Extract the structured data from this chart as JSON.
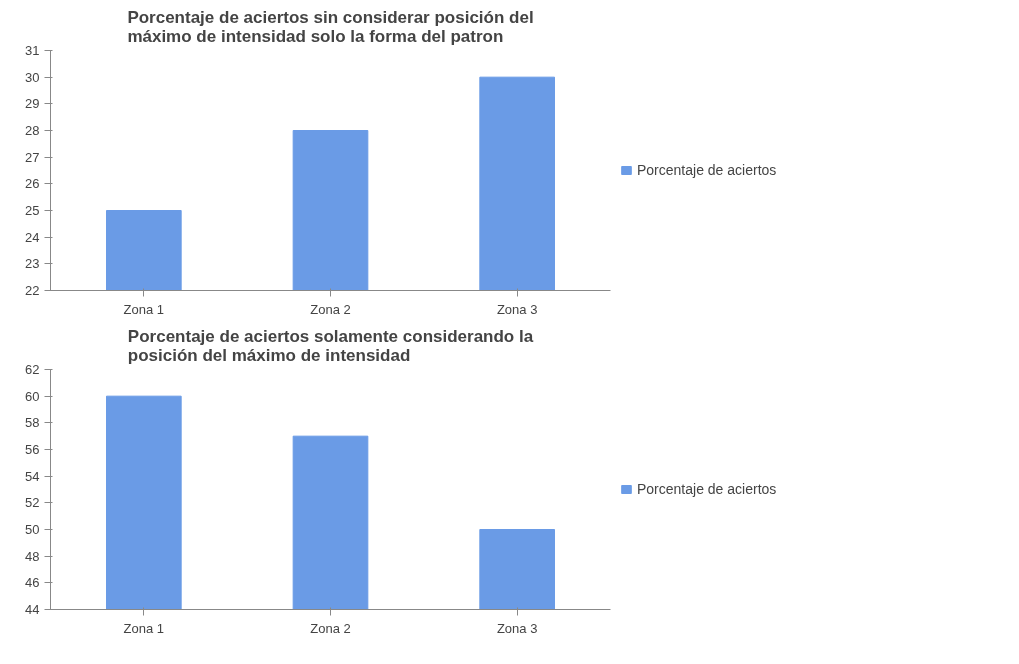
{
  "chart_data": [
    {
      "type": "bar",
      "title": "Porcentaje de aciertos sin considerar posición del\nmáximo de intensidad solo la forma del patron",
      "categories": [
        "Zona 1",
        "Zona 2",
        "Zona 3"
      ],
      "series": [
        {
          "name": "Porcentaje de aciertos",
          "color": "#6a9be6",
          "values": [
            25,
            28,
            30
          ]
        }
      ],
      "ylim": [
        22,
        31
      ],
      "yticks": [
        22,
        23,
        24,
        25,
        26,
        27,
        28,
        29,
        30,
        31
      ],
      "grid": false,
      "legend": "right"
    },
    {
      "type": "bar",
      "title": "Porcentaje de aciertos solamente considerando la\nposición del máximo de intensidad",
      "categories": [
        "Zona 1",
        "Zona 2",
        "Zona 3"
      ],
      "series": [
        {
          "name": "Porcentaje de aciertos",
          "color": "#6a9be6",
          "values": [
            60,
            57,
            50
          ]
        }
      ],
      "ylim": [
        44,
        62
      ],
      "yticks": [
        44,
        46,
        48,
        50,
        52,
        54,
        56,
        58,
        60,
        62
      ],
      "grid": false,
      "legend": "right"
    }
  ]
}
